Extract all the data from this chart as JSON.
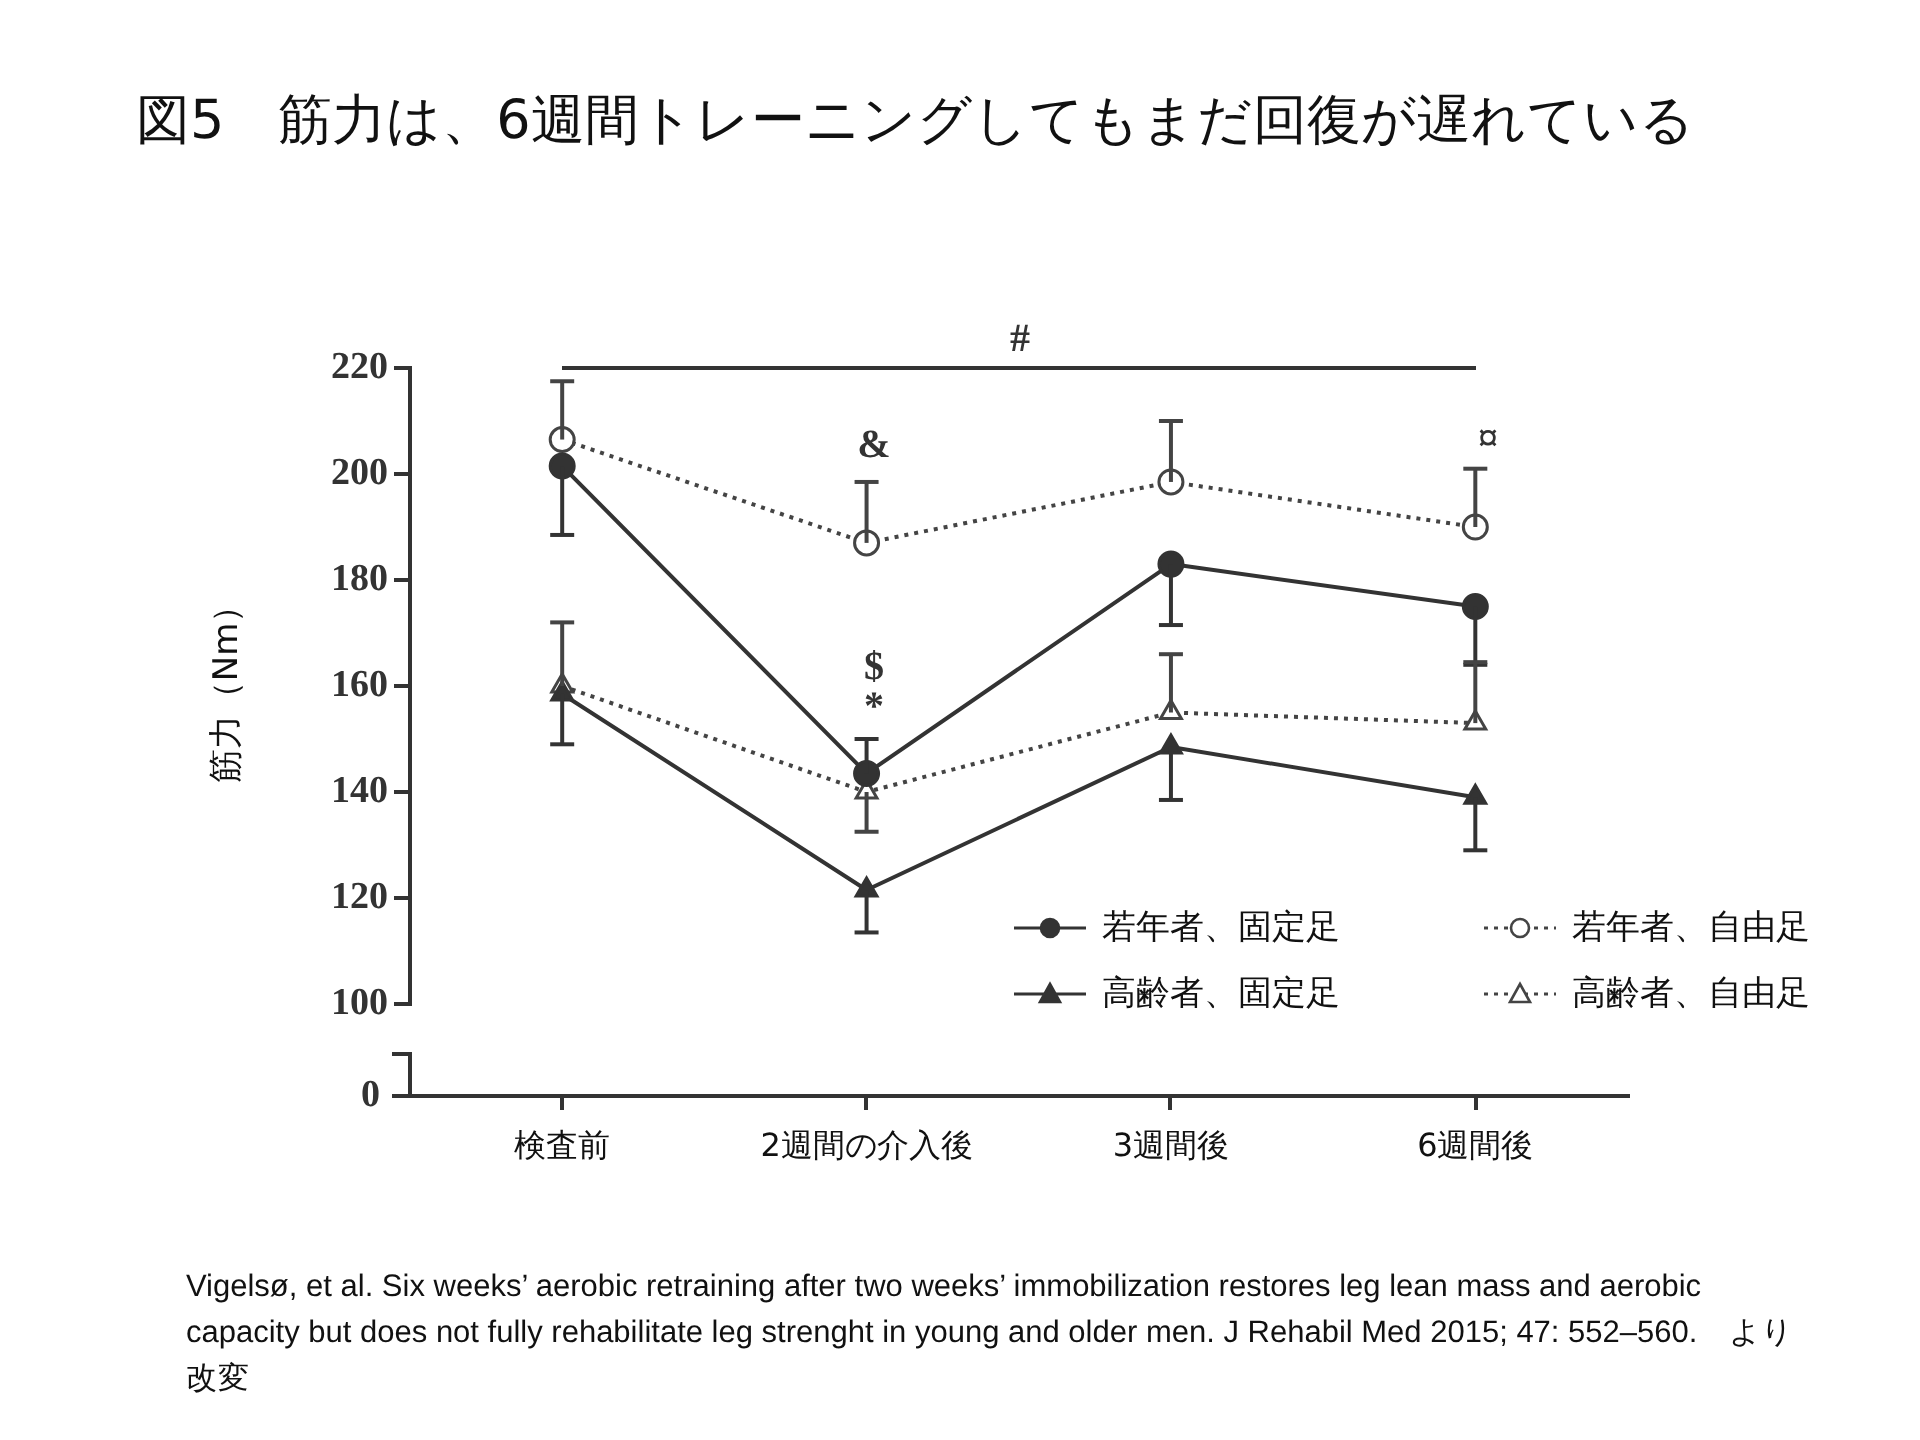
{
  "chart_data": {
    "type": "line",
    "title": "図5　筋力は、6週間トレーニングしてもまだ回復が遅れている",
    "ylabel": "筋力（Nm）",
    "categories": [
      "検査前",
      "2週間の介入後",
      "3週間後",
      "6週間後"
    ],
    "ylim": [
      100,
      220
    ],
    "yticks": [
      100,
      120,
      140,
      160,
      180,
      200,
      220
    ],
    "grid": false,
    "legend": "bottom right",
    "series": [
      {
        "name": "若年者、固定足",
        "color": "#333333",
        "marker": "circle",
        "line_style": "solid",
        "values": [
          201.5,
          143.5,
          183,
          175
        ],
        "errors": [
          [
            188.5,
            201.5
          ],
          [
            143.5,
            150
          ],
          [
            171.5,
            183
          ],
          [
            164,
            175
          ]
        ]
      },
      {
        "name": "若年者、自由足",
        "color": "#444444",
        "marker": "circle",
        "line_style": "dotted",
        "values": [
          206.5,
          187,
          198.5,
          190
        ],
        "errors": [
          [
            206.5,
            217.5
          ],
          [
            187,
            198.5
          ],
          [
            198.5,
            210
          ],
          [
            190,
            201
          ]
        ]
      },
      {
        "name": "高齢者、固定足",
        "color": "#333333",
        "marker": "triangle",
        "line_style": "solid",
        "values": [
          158.5,
          121.5,
          148.5,
          139
        ],
        "errors": [
          [
            149,
            158.5
          ],
          [
            113.5,
            121.5
          ],
          [
            138.5,
            148.5
          ],
          [
            129,
            139
          ]
        ]
      },
      {
        "name": "高齢者、自由足",
        "color": "#444444",
        "marker": "triangle",
        "line_style": "dotted",
        "values": [
          160,
          140,
          155,
          153
        ],
        "errors": [
          [
            172,
            160
          ],
          [
            132.5,
            140
          ],
          [
            166,
            155
          ],
          [
            164.5,
            153
          ]
        ]
      }
    ],
    "annotations": [
      "#",
      "&",
      "$",
      "*",
      "¤",
      "0",
      "Vigelsø, et al. Six weeks’ aerobic retraining after two weeks’ immobilization restores leg lean mass and aerobic capacity but does not fully rehabilitate leg strenght in young and older men. J Rehabil Med 2015; 47: 552–560.　より改変"
    ]
  }
}
